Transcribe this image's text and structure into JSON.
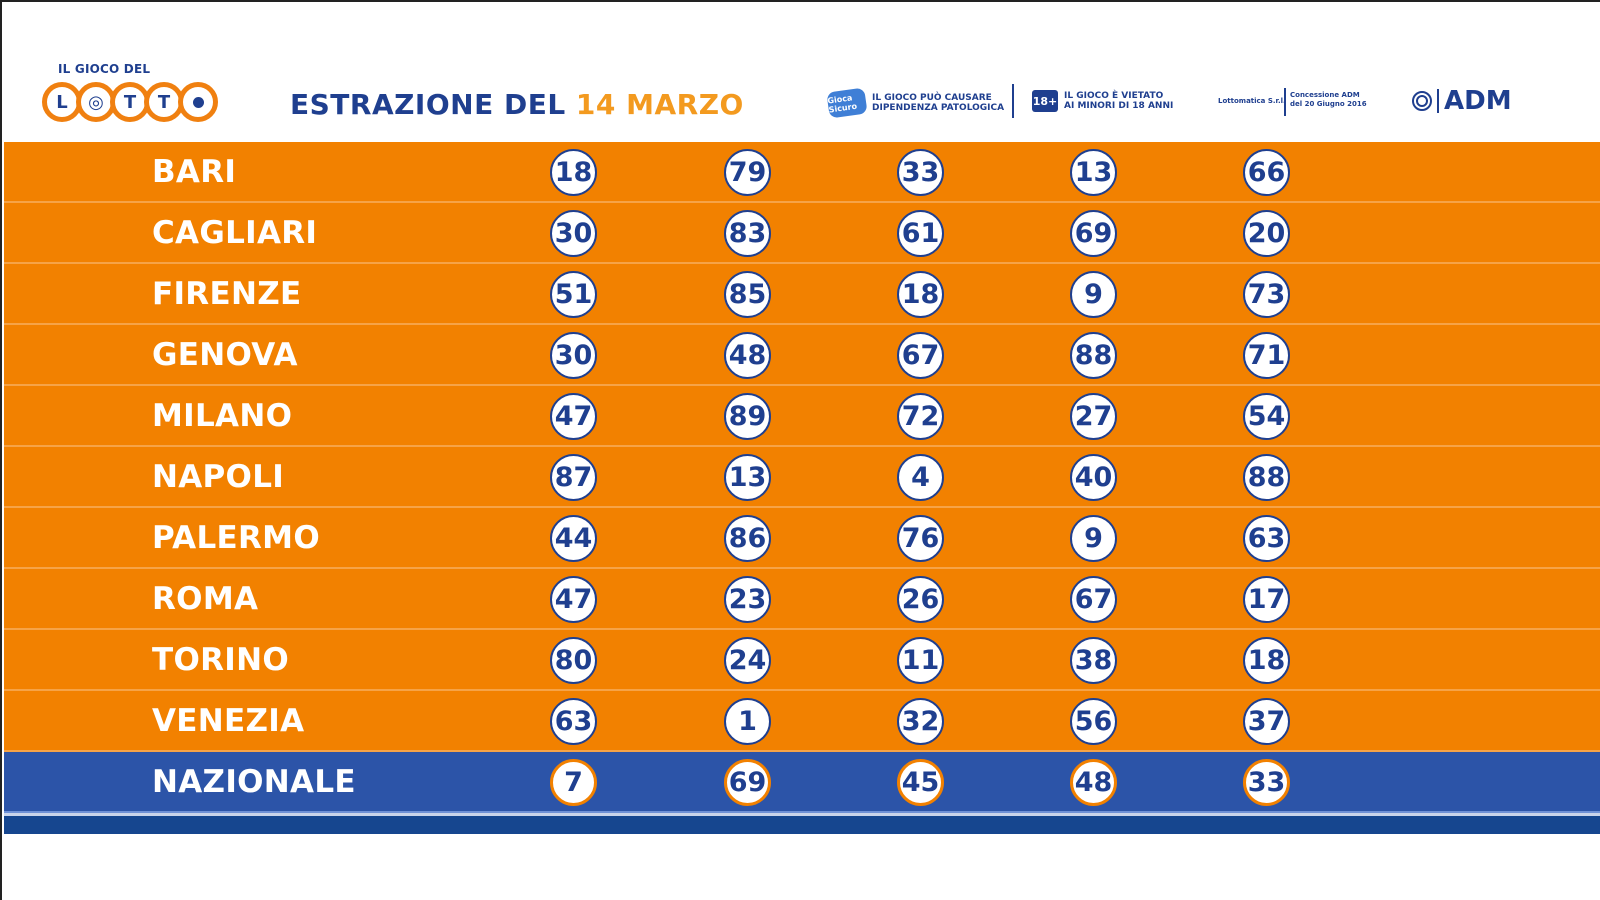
{
  "header": {
    "logo_small": "IL GIOCO DEL",
    "logo_letters": [
      "L",
      "◎",
      "T",
      "T",
      ""
    ],
    "title_prefix": "ESTRAZIONE DEL ",
    "title_date": "14 MARZO",
    "warning_1": "IL GIOCO PUÒ CAUSARE\nDIPENDENZA PATOLOGICA",
    "warning_1_sticker": "Gioca Sicuro",
    "badge_18": "18+",
    "warning_2": "IL GIOCO È VIETATO\nAI MINORI DI 18 ANNI",
    "operator": "Lottomatica S.r.l.",
    "concession": "Concessione ADM\ndel 20 Giugno 2016",
    "adm": "ADM"
  },
  "draws": [
    {
      "city": "BARI",
      "numbers": [
        "18",
        "79",
        "33",
        "13",
        "66"
      ]
    },
    {
      "city": "CAGLIARI",
      "numbers": [
        "30",
        "83",
        "61",
        "69",
        "20"
      ]
    },
    {
      "city": "FIRENZE",
      "numbers": [
        "51",
        "85",
        "18",
        "9",
        "73"
      ]
    },
    {
      "city": "GENOVA",
      "numbers": [
        "30",
        "48",
        "67",
        "88",
        "71"
      ]
    },
    {
      "city": "MILANO",
      "numbers": [
        "47",
        "89",
        "72",
        "27",
        "54"
      ]
    },
    {
      "city": "NAPOLI",
      "numbers": [
        "87",
        "13",
        "4",
        "40",
        "88"
      ]
    },
    {
      "city": "PALERMO",
      "numbers": [
        "44",
        "86",
        "76",
        "9",
        "63"
      ]
    },
    {
      "city": "ROMA",
      "numbers": [
        "47",
        "23",
        "26",
        "67",
        "17"
      ]
    },
    {
      "city": "TORINO",
      "numbers": [
        "80",
        "24",
        "11",
        "38",
        "18"
      ]
    },
    {
      "city": "VENEZIA",
      "numbers": [
        "63",
        "1",
        "32",
        "56",
        "37"
      ]
    },
    {
      "city": "NAZIONALE",
      "numbers": [
        "7",
        "69",
        "45",
        "48",
        "33"
      ]
    }
  ],
  "colors": {
    "row_orange": "#f28100",
    "nazionale_blue": "#2c54a8",
    "text_blue": "#1f3f8f",
    "date_orange": "#f39a1f"
  }
}
